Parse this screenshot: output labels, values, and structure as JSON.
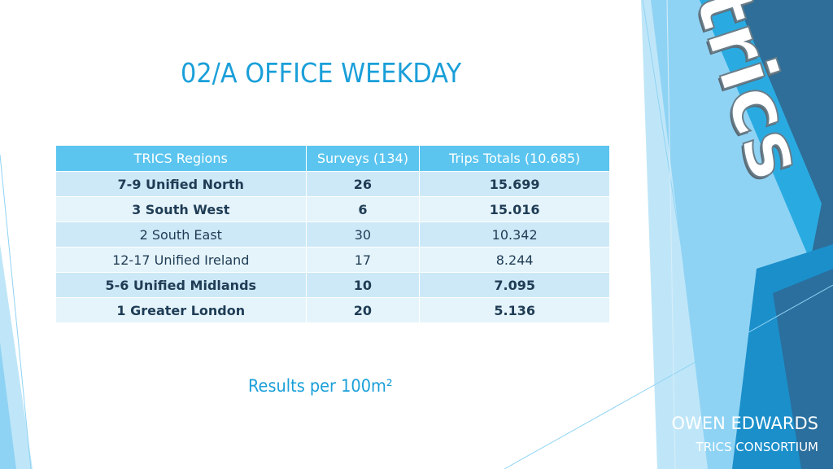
{
  "slide": {
    "title": "02/A OFFICE WEEKDAY",
    "results_note": "Results per 100m²",
    "author": "OWEN EDWARDS",
    "organization": "TRICS CONSORTIUM",
    "logo_text": "trics"
  },
  "table": {
    "headers": [
      "TRICS Regions",
      "Surveys (134)",
      "Trips Totals (10.685)"
    ],
    "rows": [
      [
        "7-9 Unified North",
        "26",
        "15.699"
      ],
      [
        "3 South West",
        "6",
        "15.016"
      ],
      [
        "2 South East",
        "30",
        "10.342"
      ],
      [
        "12-17 Unified Ireland",
        "17",
        "8.244"
      ],
      [
        "5-6 Unified Midlands",
        "10",
        "7.095"
      ],
      [
        "1 Greater London",
        "20",
        "5.136"
      ]
    ]
  },
  "colors": {
    "accent": "#1a9fd9",
    "header_bg": "#5bc5ef",
    "row_dark": "#cde9f7",
    "row_light": "#e5f4fb",
    "deco_dark": "#2e6e98",
    "deco_mid": "#29abe2",
    "deco_light": "#8fd3f4"
  }
}
